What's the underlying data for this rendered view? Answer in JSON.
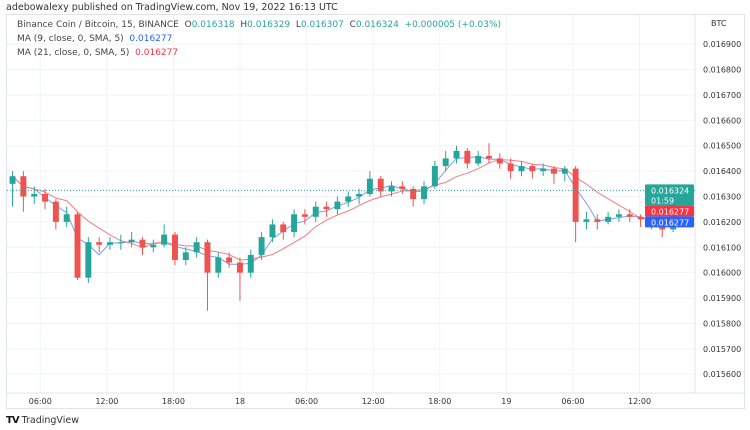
{
  "header": {
    "published": "adebowalexy published on TradingView.com, Nov 19, 2022 16:13 UTC"
  },
  "legend": {
    "symbol": "Binance Coin / Bitcoin, 15, BINANCE",
    "o_label": "O",
    "o": "0.016318",
    "h_label": "H",
    "h": "0.016329",
    "l_label": "L",
    "l": "0.016307",
    "c_label": "C",
    "c": "0.016324",
    "change": "+0.000005 (+0.03%)",
    "ma1_label": "MA (9, close, 0, SMA, 5)",
    "ma1_value": "0.016277",
    "ma2_label": "MA (21, close, 0, SMA, 5)",
    "ma2_value": "0.016277"
  },
  "footer": {
    "brand": "TradingView",
    "logo": "TV"
  },
  "colors": {
    "up": "#26a69a",
    "down": "#ef5350",
    "ma1": "#7b9cf5",
    "ma2": "#f47c85",
    "ma1_tag": "#2962ff",
    "ma2_tag": "#f23645",
    "grid": "#f0f3fa"
  },
  "chart_data": {
    "type": "candlestick",
    "currency": "BTC",
    "ylim": [
      0.015526,
      0.017015
    ],
    "yticks": [
      "0.016900",
      "0.016800",
      "0.016700",
      "0.016600",
      "0.016500",
      "0.016400",
      "0.016300",
      "0.016200",
      "0.016100",
      "0.016000",
      "0.015900",
      "0.015800",
      "0.015700",
      "0.015600"
    ],
    "xticks": [
      "06:00",
      "12:00",
      "18:00",
      "18",
      "06:00",
      "12:00",
      "18:00",
      "19",
      "06:00",
      "12:00"
    ],
    "xtick_times": [
      "2022-11-17T06:00",
      "2022-11-17T12:00",
      "2022-11-17T18:00",
      "2022-11-18T00:00",
      "2022-11-18T06:00",
      "2022-11-18T12:00",
      "2022-11-18T18:00",
      "2022-11-19T00:00",
      "2022-11-19T06:00",
      "2022-11-19T12:00"
    ],
    "x_range": [
      "2022-11-17T03:00",
      "2022-11-19T17:00"
    ],
    "candles_start": "2022-11-17T03:30",
    "candles_end": "2022-11-19T16:00",
    "candles": [
      [
        0.01635,
        0.0164,
        0.01626,
        0.01638
      ],
      [
        0.01638,
        0.0164,
        0.01624,
        0.0163
      ],
      [
        0.0163,
        0.01634,
        0.01627,
        0.01631
      ],
      [
        0.01631,
        0.01633,
        0.01625,
        0.01628
      ],
      [
        0.01628,
        0.01629,
        0.01617,
        0.0162
      ],
      [
        0.0162,
        0.01626,
        0.01618,
        0.01623
      ],
      [
        0.01623,
        0.01624,
        0.01597,
        0.01598
      ],
      [
        0.01598,
        0.01614,
        0.01596,
        0.01612
      ],
      [
        0.01612,
        0.01614,
        0.01608,
        0.01611
      ],
      [
        0.01611,
        0.01614,
        0.01609,
        0.01612
      ],
      [
        0.01612,
        0.01615,
        0.01609,
        0.01612
      ],
      [
        0.01612,
        0.01616,
        0.0161,
        0.01613
      ],
      [
        0.01613,
        0.01614,
        0.01607,
        0.0161
      ],
      [
        0.0161,
        0.01613,
        0.01608,
        0.01611
      ],
      [
        0.01611,
        0.01619,
        0.0161,
        0.01615
      ],
      [
        0.01615,
        0.01616,
        0.01603,
        0.01605
      ],
      [
        0.01605,
        0.0161,
        0.01603,
        0.01608
      ],
      [
        0.01608,
        0.01614,
        0.01606,
        0.01612
      ],
      [
        0.01612,
        0.01613,
        0.01585,
        0.016
      ],
      [
        0.016,
        0.01608,
        0.01598,
        0.01606
      ],
      [
        0.01606,
        0.01608,
        0.01602,
        0.01604
      ],
      [
        0.01604,
        0.01606,
        0.01589,
        0.016
      ],
      [
        0.016,
        0.01609,
        0.01598,
        0.01607
      ],
      [
        0.01607,
        0.01616,
        0.01605,
        0.01614
      ],
      [
        0.01614,
        0.01621,
        0.01612,
        0.01619
      ],
      [
        0.01619,
        0.0162,
        0.01613,
        0.01616
      ],
      [
        0.01616,
        0.01625,
        0.01614,
        0.01623
      ],
      [
        0.01623,
        0.01625,
        0.01619,
        0.01622
      ],
      [
        0.01622,
        0.01628,
        0.0162,
        0.01626
      ],
      [
        0.01626,
        0.01628,
        0.01622,
        0.01625
      ],
      [
        0.01625,
        0.0163,
        0.01623,
        0.01628
      ],
      [
        0.01628,
        0.01632,
        0.01626,
        0.0163
      ],
      [
        0.0163,
        0.01633,
        0.01627,
        0.01631
      ],
      [
        0.01631,
        0.0164,
        0.0163,
        0.01637
      ],
      [
        0.01637,
        0.01638,
        0.0163,
        0.01632
      ],
      [
        0.01632,
        0.01636,
        0.0163,
        0.01634
      ],
      [
        0.01634,
        0.01636,
        0.01631,
        0.01633
      ],
      [
        0.01633,
        0.01634,
        0.01626,
        0.01629
      ],
      [
        0.01629,
        0.01636,
        0.01627,
        0.01634
      ],
      [
        0.01634,
        0.01644,
        0.01633,
        0.01642
      ],
      [
        0.01642,
        0.01648,
        0.0164,
        0.01645
      ],
      [
        0.01645,
        0.0165,
        0.01643,
        0.01648
      ],
      [
        0.01648,
        0.01649,
        0.01641,
        0.01643
      ],
      [
        0.01643,
        0.01648,
        0.01642,
        0.01646
      ],
      [
        0.01646,
        0.01651,
        0.01643,
        0.01645
      ],
      [
        0.01645,
        0.01647,
        0.01641,
        0.01643
      ],
      [
        0.01643,
        0.01645,
        0.01637,
        0.0164
      ],
      [
        0.0164,
        0.01644,
        0.01638,
        0.01642
      ],
      [
        0.01642,
        0.01643,
        0.01637,
        0.0164
      ],
      [
        0.0164,
        0.01643,
        0.01638,
        0.01641
      ],
      [
        0.01641,
        0.01642,
        0.01635,
        0.01639
      ],
      [
        0.01639,
        0.01642,
        0.01636,
        0.01641
      ],
      [
        0.01641,
        0.01642,
        0.01612,
        0.0162
      ],
      [
        0.0162,
        0.01624,
        0.01617,
        0.01621
      ],
      [
        0.01621,
        0.01623,
        0.01617,
        0.0162
      ],
      [
        0.0162,
        0.01624,
        0.01619,
        0.01622
      ],
      [
        0.01622,
        0.01625,
        0.0162,
        0.01623
      ],
      [
        0.01623,
        0.01625,
        0.0162,
        0.01622
      ],
      [
        0.01622,
        0.01623,
        0.01618,
        0.01621
      ],
      [
        0.01621,
        0.01622,
        0.01617,
        0.01619
      ],
      [
        0.01619,
        0.0162,
        0.01614,
        0.01617
      ],
      [
        0.01617,
        0.01628,
        0.01616,
        0.01627
      ],
      [
        0.01627,
        0.016329,
        0.01626,
        0.016324
      ]
    ],
    "last_price": {
      "value": "0.016324",
      "countdown": "01:59"
    },
    "ma1_tag": "0.016277",
    "ma2_tag": "0.016277",
    "grid": true
  }
}
